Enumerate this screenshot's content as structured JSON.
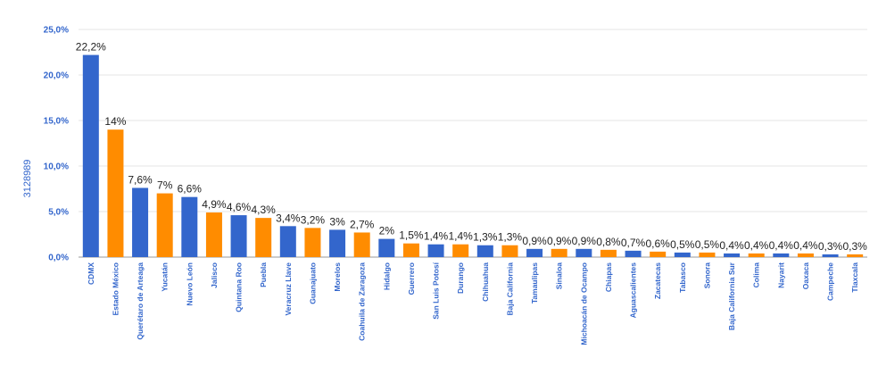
{
  "chart_data": {
    "type": "bar",
    "title": "",
    "xlabel": "",
    "ylabel": "3128989",
    "ylim": [
      0,
      25
    ],
    "yticks": [
      "0,0%",
      "5,0%",
      "10,0%",
      "15,0%",
      "20,0%",
      "25,0%"
    ],
    "grid": true,
    "colors": [
      "#3366cc",
      "#ff8c00"
    ],
    "categories": [
      "CDMX",
      "Estado México",
      "Querétaro de Arteaga",
      "Yucatán",
      "Nuevo León",
      "Jalisco",
      "Quintana Roo",
      "Puebla",
      "Veracruz Llave",
      "Guanajuato",
      "Morelos",
      "Coahuila de Zaragoza",
      "Hidalgo",
      "Guerrero",
      "San Luis Potosí",
      "Durango",
      "Chihuahua",
      "Baja California",
      "Tamaulipas",
      "Sinaloa",
      "Michoacán de Ocampo",
      "Chiapas",
      "Aguascalientes",
      "Zacatecas",
      "Tabasco",
      "Sonora",
      "Baja California Sur",
      "Colima",
      "Nayarit",
      "Oaxaca",
      "Campeche",
      "Tlaxcala"
    ],
    "values": [
      22.2,
      14,
      7.6,
      7,
      6.6,
      4.9,
      4.6,
      4.3,
      3.4,
      3.2,
      3,
      2.7,
      2,
      1.5,
      1.4,
      1.4,
      1.3,
      1.3,
      0.9,
      0.9,
      0.9,
      0.8,
      0.7,
      0.6,
      0.5,
      0.5,
      0.4,
      0.4,
      0.4,
      0.4,
      0.3,
      0.3
    ],
    "labels": [
      "22,2%",
      "14%",
      "7,6%",
      "7%",
      "6,6%",
      "4,9%",
      "4,6%",
      "4,3%",
      "3,4%",
      "3,2%",
      "3%",
      "2,7%",
      "2%",
      "1,5%",
      "1,4%",
      "1,4%",
      "1,3%",
      "1,3%",
      "0,9%",
      "0,9%",
      "0,9%",
      "0,8%",
      "0,7%",
      "0,6%",
      "0,5%",
      "0,5%",
      "0,4%",
      "0,4%",
      "0,4%",
      "0,4%",
      "0,3%",
      "0,3%"
    ]
  }
}
